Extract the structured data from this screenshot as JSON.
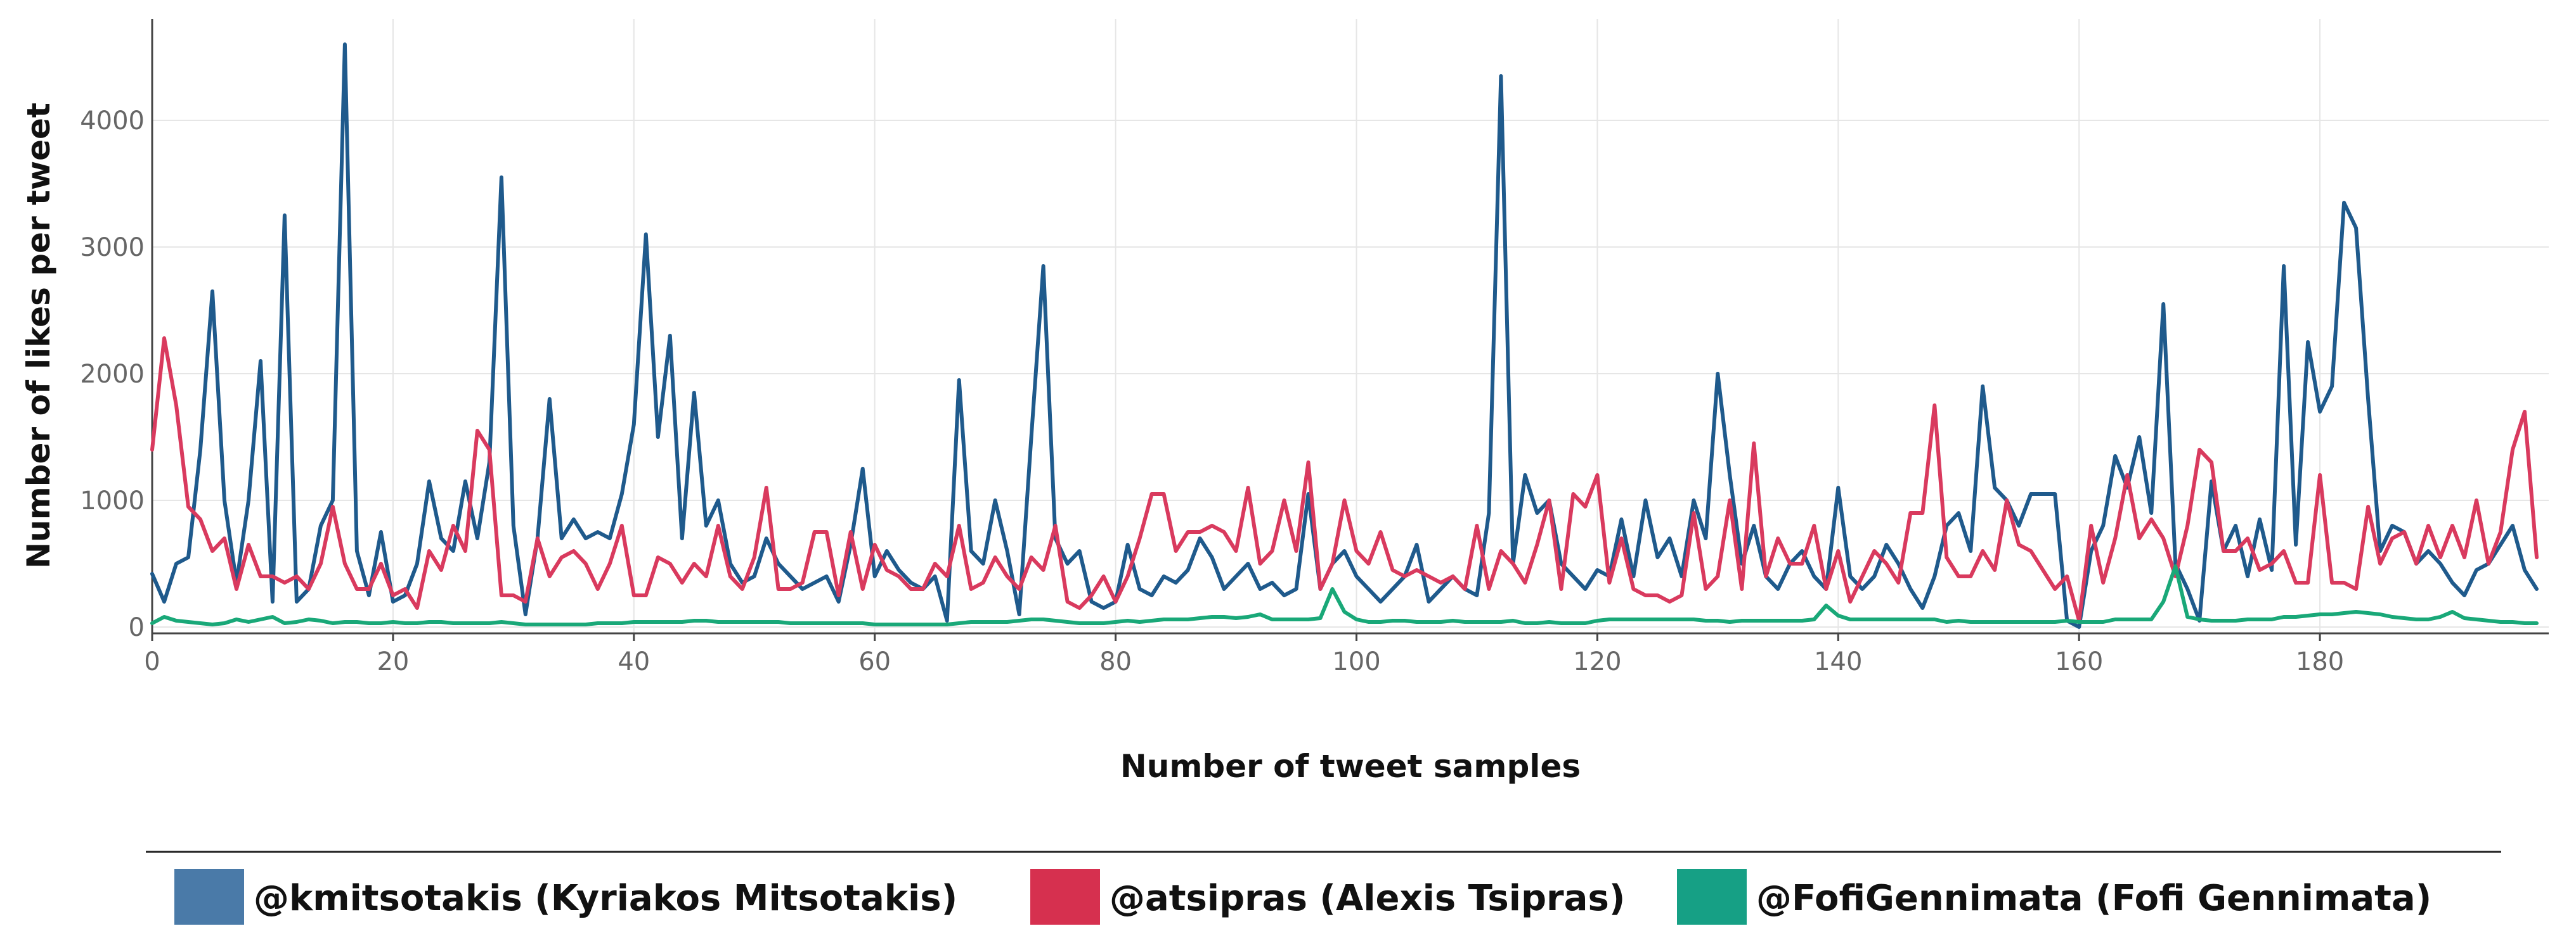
{
  "chart_data": {
    "type": "line",
    "xlabel": "Number of tweet samples",
    "ylabel": "Number of likes per tweet",
    "xlim": [
      0,
      199
    ],
    "ylim": [
      -50,
      4800
    ],
    "x_ticks": [
      0,
      20,
      40,
      60,
      80,
      100,
      120,
      140,
      160,
      180
    ],
    "y_ticks": [
      0,
      1000,
      2000,
      3000,
      4000
    ],
    "grid": true,
    "legend_placement": "bottom",
    "series": [
      {
        "name": "@kmitsotakis (Kyriakos Mitsotakis)",
        "color": "#1f5a8c",
        "legend_color": "#4a7aa8",
        "values": [
          420,
          200,
          500,
          550,
          1400,
          2650,
          1000,
          350,
          1000,
          2100,
          200,
          3250,
          200,
          300,
          800,
          1000,
          4600,
          600,
          250,
          750,
          200,
          250,
          500,
          1150,
          700,
          600,
          1150,
          700,
          1300,
          3550,
          800,
          100,
          700,
          1800,
          700,
          850,
          700,
          750,
          700,
          1050,
          1600,
          3100,
          1500,
          2300,
          700,
          1850,
          800,
          1000,
          500,
          350,
          400,
          700,
          500,
          400,
          300,
          350,
          400,
          200,
          650,
          1250,
          400,
          600,
          450,
          350,
          300,
          400,
          50,
          1950,
          600,
          500,
          1000,
          600,
          100,
          1500,
          2850,
          700,
          500,
          600,
          200,
          150,
          200,
          650,
          300,
          250,
          400,
          350,
          450,
          700,
          550,
          300,
          400,
          500,
          300,
          350,
          250,
          300,
          1050,
          300,
          500,
          600,
          400,
          300,
          200,
          300,
          400,
          650,
          200,
          300,
          400,
          300,
          250,
          900,
          4350,
          500,
          1200,
          900,
          1000,
          500,
          400,
          300,
          450,
          400,
          850,
          400,
          1000,
          550,
          700,
          400,
          1000,
          700,
          2000,
          1200,
          500,
          800,
          400,
          300,
          500,
          600,
          400,
          300,
          1100,
          400,
          300,
          400,
          650,
          500,
          300,
          150,
          400,
          800,
          900,
          600,
          1900,
          1100,
          1000,
          800,
          1050,
          1050,
          1050,
          50,
          0,
          600,
          800,
          1350,
          1100,
          1500,
          900,
          2550,
          500,
          300,
          50,
          1150,
          600,
          800,
          400,
          850,
          450,
          2850,
          650,
          2250,
          1700,
          1900,
          3350,
          3150,
          1800,
          600,
          800,
          750,
          500,
          600,
          500,
          350,
          250,
          450,
          500,
          650,
          800,
          450,
          300
        ]
      },
      {
        "name": "@atsipras (Alexis Tsipras)",
        "color": "#d93a5e",
        "legend_color": "#d6304f",
        "values": [
          1400,
          2280,
          1750,
          950,
          850,
          600,
          700,
          300,
          650,
          400,
          400,
          350,
          400,
          300,
          500,
          950,
          500,
          300,
          300,
          500,
          250,
          300,
          150,
          600,
          450,
          800,
          600,
          1550,
          1400,
          250,
          250,
          200,
          700,
          400,
          550,
          600,
          500,
          300,
          500,
          800,
          250,
          250,
          550,
          500,
          350,
          500,
          400,
          800,
          400,
          300,
          550,
          1100,
          300,
          300,
          350,
          750,
          750,
          250,
          750,
          300,
          650,
          450,
          400,
          300,
          300,
          500,
          400,
          800,
          300,
          350,
          550,
          400,
          300,
          550,
          450,
          800,
          200,
          150,
          250,
          400,
          200,
          400,
          700,
          1050,
          1050,
          600,
          750,
          750,
          800,
          750,
          600,
          1100,
          500,
          600,
          1000,
          600,
          1300,
          300,
          500,
          1000,
          600,
          500,
          750,
          450,
          400,
          450,
          400,
          350,
          400,
          300,
          800,
          300,
          600,
          500,
          350,
          650,
          1000,
          300,
          1050,
          950,
          1200,
          350,
          700,
          300,
          250,
          250,
          200,
          250,
          900,
          300,
          400,
          1000,
          300,
          1450,
          400,
          700,
          500,
          500,
          800,
          300,
          600,
          200,
          400,
          600,
          500,
          350,
          900,
          900,
          1750,
          550,
          400,
          400,
          600,
          450,
          1000,
          650,
          600,
          450,
          300,
          400,
          50,
          800,
          350,
          700,
          1200,
          700,
          850,
          700,
          400,
          800,
          1400,
          1300,
          600,
          600,
          700,
          450,
          500,
          600,
          350,
          350,
          1200,
          350,
          350,
          300,
          950,
          500,
          700,
          750,
          500,
          800,
          550,
          800,
          550,
          1000,
          500,
          750,
          1400,
          1700,
          550
        ]
      },
      {
        "name": "@FofiGennimata (Fofi Gennimata)",
        "color": "#19a878",
        "legend_color": "#16a085",
        "values": [
          30,
          80,
          50,
          40,
          30,
          20,
          30,
          60,
          40,
          60,
          80,
          30,
          40,
          60,
          50,
          30,
          40,
          40,
          30,
          30,
          40,
          30,
          30,
          40,
          40,
          30,
          30,
          30,
          30,
          40,
          30,
          20,
          20,
          20,
          20,
          20,
          20,
          30,
          30,
          30,
          40,
          40,
          40,
          40,
          40,
          50,
          50,
          40,
          40,
          40,
          40,
          40,
          40,
          30,
          30,
          30,
          30,
          30,
          30,
          30,
          20,
          20,
          20,
          20,
          20,
          20,
          20,
          30,
          40,
          40,
          40,
          40,
          50,
          60,
          60,
          50,
          40,
          30,
          30,
          30,
          40,
          50,
          40,
          50,
          60,
          60,
          60,
          70,
          80,
          80,
          70,
          80,
          100,
          60,
          60,
          60,
          60,
          70,
          300,
          120,
          60,
          40,
          40,
          50,
          50,
          40,
          40,
          40,
          50,
          40,
          40,
          40,
          40,
          50,
          30,
          30,
          40,
          30,
          30,
          30,
          50,
          60,
          60,
          60,
          60,
          60,
          60,
          60,
          60,
          50,
          50,
          40,
          50,
          50,
          50,
          50,
          50,
          50,
          60,
          170,
          90,
          60,
          60,
          60,
          60,
          60,
          60,
          60,
          60,
          40,
          50,
          40,
          40,
          40,
          40,
          40,
          40,
          40,
          40,
          50,
          40,
          40,
          40,
          60,
          60,
          60,
          60,
          200,
          480,
          80,
          60,
          50,
          50,
          50,
          60,
          60,
          60,
          80,
          80,
          90,
          100,
          100,
          110,
          120,
          110,
          100,
          80,
          70,
          60,
          60,
          80,
          120,
          70,
          60,
          50,
          40,
          40,
          30,
          30
        ]
      }
    ]
  }
}
